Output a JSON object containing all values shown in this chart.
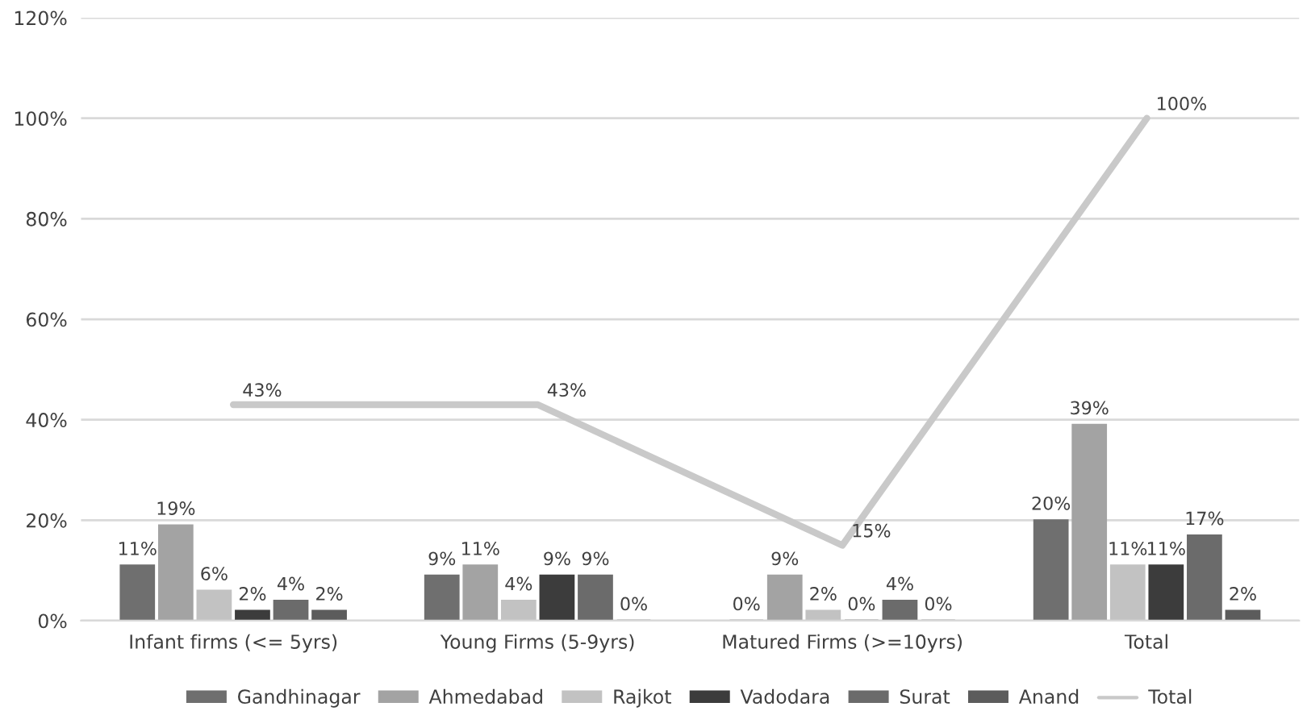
{
  "chart_data": {
    "type": "bar",
    "categories": [
      "Infant firms (<= 5yrs)",
      "Young Firms (5-9yrs)",
      "Matured Firms (>=10yrs)",
      "Total"
    ],
    "series": [
      {
        "name": "Gandhinagar",
        "color": "#6f6f6f",
        "values": [
          11,
          9,
          0,
          20
        ],
        "value_labels": [
          "11%",
          "9%",
          "0%",
          "20%"
        ]
      },
      {
        "name": "Ahmedabad",
        "color": "#a3a3a3",
        "values": [
          19,
          11,
          9,
          39
        ],
        "value_labels": [
          "19%",
          "11%",
          "9%",
          "39%"
        ]
      },
      {
        "name": "Rajkot",
        "color": "#c2c2c2",
        "values": [
          6,
          4,
          2,
          11
        ],
        "value_labels": [
          "6%",
          "4%",
          "2%",
          "11%"
        ]
      },
      {
        "name": "Vadodara",
        "color": "#3c3c3c",
        "values": [
          2,
          9,
          0,
          11
        ],
        "value_labels": [
          "2%",
          "9%",
          "0%",
          "11%"
        ]
      },
      {
        "name": "Surat",
        "color": "#6b6b6b",
        "values": [
          4,
          9,
          4,
          17
        ],
        "value_labels": [
          "4%",
          "9%",
          "4%",
          "17%"
        ]
      },
      {
        "name": "Anand",
        "color": "#5c5c5c",
        "values": [
          2,
          0,
          0,
          2
        ],
        "value_labels": [
          "2%",
          "0%",
          "0%",
          "2%"
        ]
      },
      {
        "name": "Total",
        "type": "line",
        "color": "#c9c9c9",
        "values": [
          43,
          43,
          15,
          100
        ],
        "value_labels": [
          "43%",
          "43%",
          "15%",
          "100%"
        ]
      }
    ],
    "ylim": [
      0,
      120
    ],
    "yticks": [
      {
        "value": 0,
        "label": "0%"
      },
      {
        "value": 20,
        "label": "20%"
      },
      {
        "value": 40,
        "label": "40%"
      },
      {
        "value": 60,
        "label": "60%"
      },
      {
        "value": 80,
        "label": "80%"
      },
      {
        "value": 100,
        "label": "100%"
      },
      {
        "value": 120,
        "label": "120%"
      }
    ],
    "grid": "y",
    "legend": "bottom",
    "marker": "none",
    "line_style": "solid"
  }
}
